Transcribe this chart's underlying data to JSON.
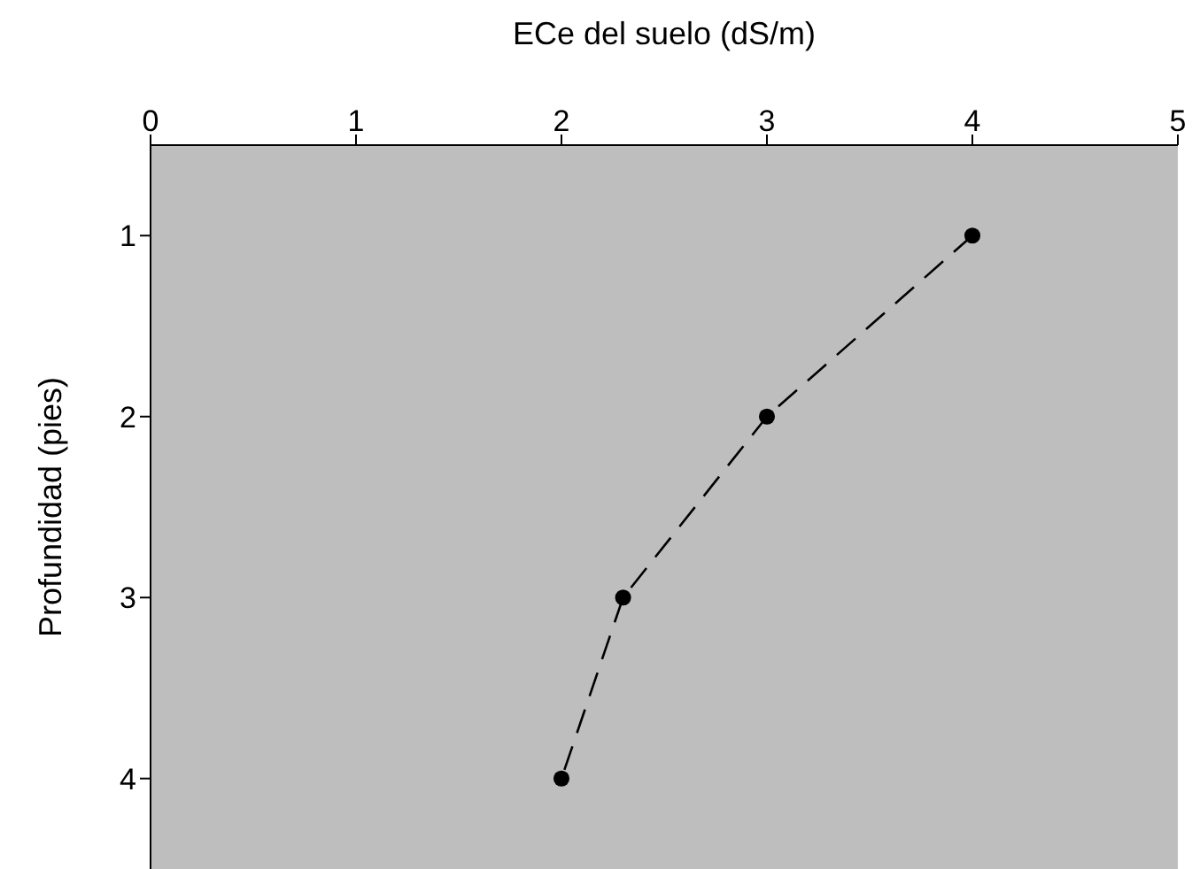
{
  "chart_data": {
    "type": "line",
    "xlabel": "ECe del suelo (dS/m)",
    "ylabel": "Profundidad (pies)",
    "xlim": [
      0,
      5
    ],
    "xticks": [
      0,
      1,
      2,
      3,
      4,
      5
    ],
    "ylim": [
      4.5,
      0.5
    ],
    "yticks": [
      1,
      2,
      3,
      4
    ],
    "series": [
      {
        "color": "#000000",
        "x": [
          4,
          3,
          2.3,
          2
        ],
        "values": [
          1,
          2,
          3,
          4
        ]
      }
    ],
    "marker": "circle",
    "line_style": "dashed"
  }
}
